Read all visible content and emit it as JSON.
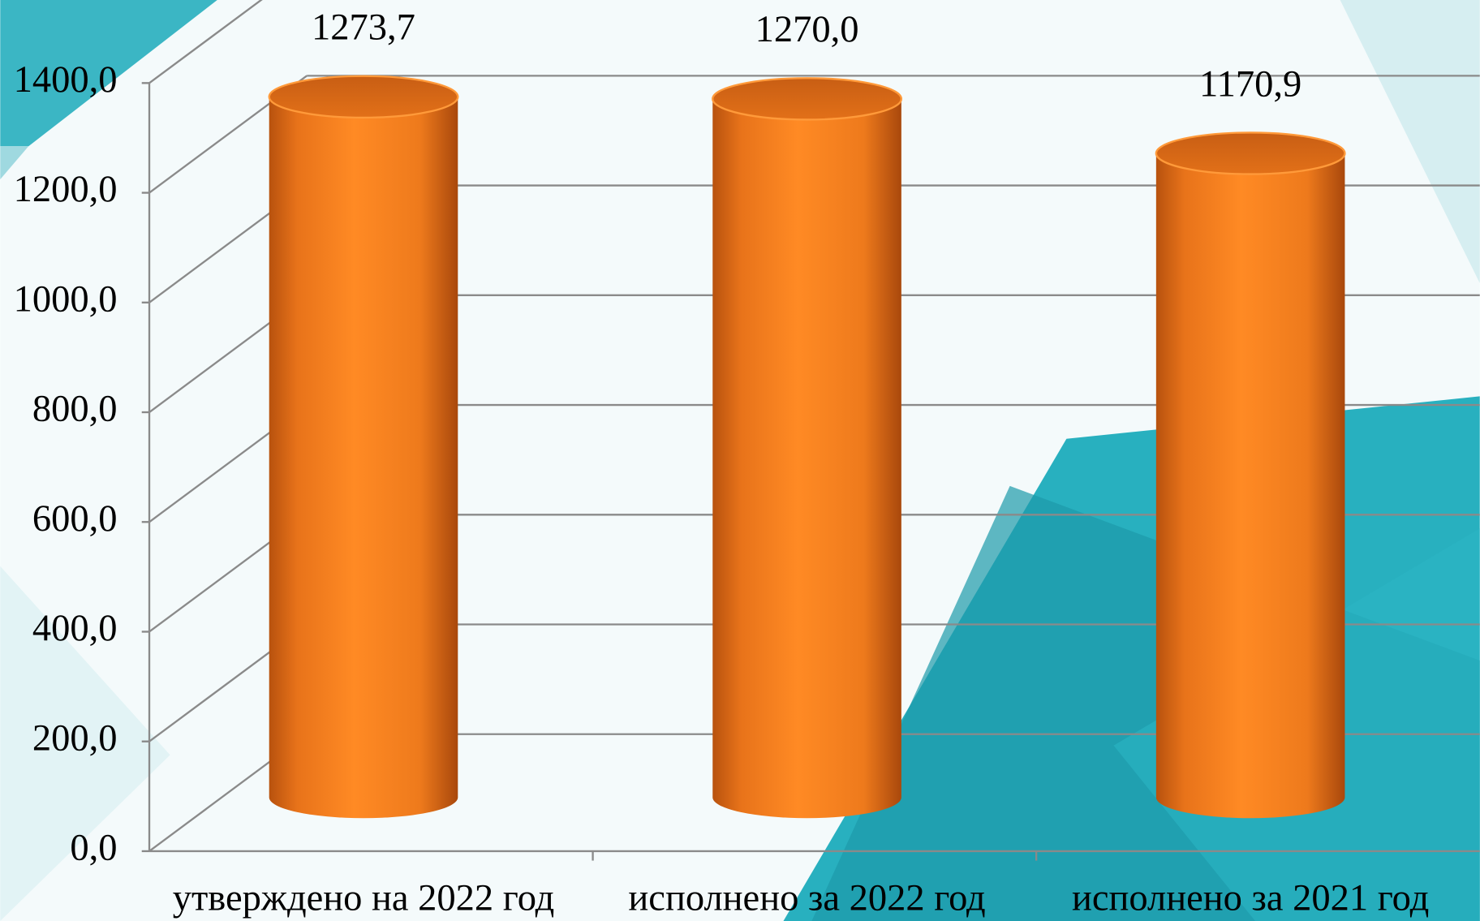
{
  "chart_data": {
    "type": "bar",
    "categories": [
      "утверждено на 2022 год",
      "исполнено за 2022 год",
      "исполнено за 2021 год"
    ],
    "values": [
      1273.7,
      1270.0,
      1170.9
    ],
    "value_labels": [
      "1273,7",
      "1270,0",
      "1170,9"
    ],
    "color": "#f98020",
    "ylim": [
      0,
      1400
    ],
    "yticks": [
      {
        "value": 0,
        "label": "0,0"
      },
      {
        "value": 200,
        "label": "200,0"
      },
      {
        "value": 400,
        "label": "400,0"
      },
      {
        "value": 600,
        "label": "600,0"
      },
      {
        "value": 800,
        "label": "800,0"
      },
      {
        "value": 1000,
        "label": "1000,0"
      },
      {
        "value": 1200,
        "label": "1200,0"
      },
      {
        "value": 1400,
        "label": "1400,0"
      }
    ],
    "grid": true
  }
}
